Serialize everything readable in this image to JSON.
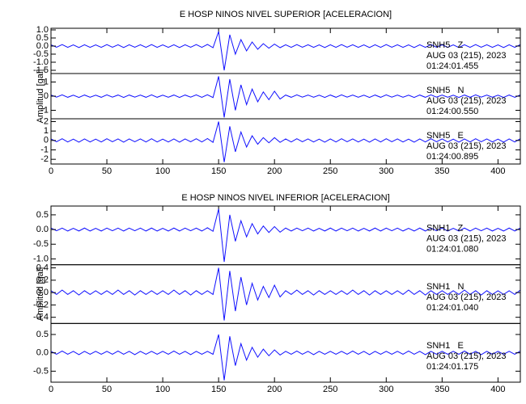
{
  "chart_data": [
    {
      "type": "line",
      "title": "E HOSP NINOS NIVEL SUPERIOR [ACELERACION]",
      "ylabel": "Amplitud [gal]",
      "xlim": [
        0,
        420
      ],
      "xticks": [
        0,
        50,
        100,
        150,
        200,
        250,
        300,
        350,
        400
      ],
      "x": [
        0,
        5,
        10,
        15,
        20,
        25,
        30,
        35,
        40,
        45,
        50,
        55,
        60,
        65,
        70,
        75,
        80,
        85,
        90,
        95,
        100,
        105,
        110,
        115,
        120,
        125,
        130,
        135,
        140,
        145,
        150,
        155,
        160,
        165,
        170,
        175,
        180,
        185,
        190,
        195,
        200,
        205,
        210,
        215,
        220,
        225,
        230,
        235,
        240,
        245,
        250,
        255,
        260,
        265,
        270,
        275,
        280,
        285,
        290,
        295,
        300,
        305,
        310,
        315,
        320,
        325,
        330,
        335,
        340,
        345,
        350,
        355,
        360,
        365,
        370,
        375,
        380,
        385,
        390,
        395,
        400,
        405,
        410,
        415,
        420
      ],
      "series": [
        {
          "name": "SNH5   Z",
          "annotation": [
            "AUG 03 (215), 2023",
            "01:24:01.455"
          ],
          "color": "#1010ff",
          "ylim": [
            -1.7,
            1.1
          ],
          "yticks": [
            {
              "value": 1,
              "label": "1.0"
            },
            0.5,
            {
              "value": 0,
              "label": "0.0"
            },
            -0.5,
            {
              "value": -1,
              "label": "-1.0"
            },
            -1.5
          ],
          "values": [
            0.08,
            -0.07,
            0.09,
            -0.08,
            0.07,
            -0.09,
            0.08,
            -0.08,
            0.07,
            -0.08,
            0.09,
            -0.07,
            0.08,
            -0.09,
            0.08,
            -0.07,
            0.08,
            -0.08,
            0.09,
            -0.08,
            0.07,
            -0.08,
            0.08,
            -0.09,
            0.08,
            -0.07,
            0.09,
            -0.08,
            0.1,
            -0.1,
            0.9,
            -1.5,
            0.7,
            -0.5,
            0.4,
            -0.3,
            0.25,
            -0.2,
            0.15,
            -0.13,
            0.12,
            -0.1,
            0.08,
            -0.08,
            0.09,
            -0.07,
            0.08,
            -0.08,
            0.07,
            -0.09,
            0.08,
            -0.08,
            0.09,
            -0.07,
            0.08,
            -0.08,
            0.07,
            -0.09,
            0.08,
            -0.08,
            0.09,
            -0.07,
            0.08,
            -0.08,
            0.07,
            -0.09,
            0.08,
            -0.08,
            0.09,
            -0.07,
            0.08,
            -0.08,
            0.07,
            -0.09,
            0.08,
            -0.08,
            0.09,
            -0.07,
            0.08,
            -0.08,
            0.07,
            -0.09,
            0.08,
            -0.08,
            0.09
          ]
        },
        {
          "name": "SNH5   N",
          "annotation": [
            "AUG 03 (215), 2023",
            "01:24:00.550"
          ],
          "color": "#1010ff",
          "ylim": [
            -1.6,
            1.6
          ],
          "yticks": [
            1,
            0,
            -1
          ],
          "values": [
            0.08,
            -0.07,
            0.09,
            -0.08,
            0.07,
            -0.09,
            0.08,
            -0.08,
            0.07,
            -0.08,
            0.09,
            -0.07,
            0.08,
            -0.09,
            0.08,
            -0.07,
            0.08,
            -0.08,
            0.09,
            -0.08,
            0.07,
            -0.08,
            0.08,
            -0.09,
            0.08,
            -0.07,
            0.09,
            -0.08,
            0.1,
            -0.1,
            1.4,
            -1.5,
            1.2,
            -1.0,
            0.8,
            -0.6,
            0.5,
            -0.4,
            0.3,
            -0.25,
            0.35,
            -0.2,
            0.08,
            -0.08,
            0.09,
            -0.07,
            0.08,
            -0.08,
            0.07,
            -0.09,
            0.08,
            -0.08,
            0.09,
            -0.07,
            0.08,
            -0.08,
            0.07,
            -0.09,
            0.08,
            -0.08,
            0.09,
            -0.07,
            0.08,
            -0.08,
            0.07,
            -0.09,
            0.08,
            -0.08,
            0.09,
            -0.07,
            0.08,
            -0.08,
            0.07,
            -0.09,
            0.08,
            -0.08,
            0.09,
            -0.07,
            0.08,
            -0.08,
            0.07,
            -0.09,
            0.08,
            -0.08,
            0.09
          ]
        },
        {
          "name": "SNH5   E",
          "annotation": [
            "AUG 03 (215), 2023",
            "01:24:00.895"
          ],
          "color": "#1010ff",
          "ylim": [
            -2.5,
            2.3
          ],
          "yticks": [
            2,
            1,
            0,
            -1,
            -2
          ],
          "values": [
            0.16,
            -0.14,
            0.18,
            -0.16,
            0.14,
            -0.18,
            0.16,
            -0.16,
            0.14,
            -0.16,
            0.18,
            -0.14,
            0.16,
            -0.18,
            0.16,
            -0.14,
            0.16,
            -0.16,
            0.18,
            -0.16,
            0.14,
            -0.16,
            0.16,
            -0.18,
            0.16,
            -0.14,
            0.18,
            -0.16,
            0.2,
            -0.2,
            2.0,
            -2.3,
            1.5,
            -1.2,
            0.9,
            -0.7,
            0.5,
            -0.4,
            0.3,
            -0.25,
            0.3,
            -0.2,
            0.16,
            -0.16,
            0.18,
            -0.14,
            0.16,
            -0.16,
            0.14,
            -0.18,
            0.16,
            -0.16,
            0.18,
            -0.14,
            0.16,
            -0.16,
            0.14,
            -0.18,
            0.16,
            -0.16,
            0.18,
            -0.14,
            0.16,
            -0.16,
            0.14,
            -0.18,
            0.16,
            -0.16,
            0.18,
            -0.14,
            0.16,
            -0.16,
            0.14,
            -0.18,
            0.16,
            -0.16,
            0.18,
            -0.14,
            0.16,
            -0.16,
            0.14,
            -0.18,
            0.16,
            -0.16,
            0.18
          ]
        }
      ]
    },
    {
      "type": "line",
      "title": "E HOSP NINOS NIVEL INFERIOR [ACELERACION]",
      "ylabel": "Amplitud [gal]",
      "xlim": [
        0,
        420
      ],
      "xticks": [
        0,
        50,
        100,
        150,
        200,
        250,
        300,
        350,
        400
      ],
      "x": [
        0,
        5,
        10,
        15,
        20,
        25,
        30,
        35,
        40,
        45,
        50,
        55,
        60,
        65,
        70,
        75,
        80,
        85,
        90,
        95,
        100,
        105,
        110,
        115,
        120,
        125,
        130,
        135,
        140,
        145,
        150,
        155,
        160,
        165,
        170,
        175,
        180,
        185,
        190,
        195,
        200,
        205,
        210,
        215,
        220,
        225,
        230,
        235,
        240,
        245,
        250,
        255,
        260,
        265,
        270,
        275,
        280,
        285,
        290,
        295,
        300,
        305,
        310,
        315,
        320,
        325,
        330,
        335,
        340,
        345,
        350,
        355,
        360,
        365,
        370,
        375,
        380,
        385,
        390,
        395,
        400,
        405,
        410,
        415,
        420
      ],
      "series": [
        {
          "name": "SNH1   Z",
          "annotation": [
            "AUG 03 (215), 2023",
            "01:24:01.080"
          ],
          "color": "#1010ff",
          "ylim": [
            -1.2,
            0.8
          ],
          "yticks": [
            0.5,
            {
              "value": 0,
              "label": "0.0"
            },
            -0.5,
            {
              "value": -1,
              "label": "-1.0"
            }
          ],
          "values": [
            0.05,
            -0.04,
            0.05,
            -0.05,
            0.04,
            -0.05,
            0.05,
            -0.05,
            0.04,
            -0.05,
            0.05,
            -0.04,
            0.05,
            -0.05,
            0.05,
            -0.04,
            0.05,
            -0.05,
            0.05,
            -0.05,
            0.04,
            -0.05,
            0.05,
            -0.05,
            0.05,
            -0.04,
            0.05,
            -0.05,
            0.06,
            -0.06,
            0.7,
            -1.1,
            0.5,
            -0.4,
            0.3,
            -0.25,
            0.2,
            -0.15,
            0.12,
            -0.1,
            0.1,
            -0.09,
            0.05,
            -0.05,
            0.05,
            -0.04,
            0.05,
            -0.05,
            0.04,
            -0.05,
            0.05,
            -0.05,
            0.05,
            -0.04,
            0.05,
            -0.05,
            0.04,
            -0.05,
            0.05,
            -0.05,
            0.05,
            -0.04,
            0.05,
            -0.05,
            0.04,
            -0.05,
            0.05,
            -0.05,
            0.05,
            -0.04,
            0.05,
            -0.05,
            0.04,
            -0.05,
            0.05,
            -0.05,
            0.05,
            -0.04,
            0.05,
            -0.05,
            0.04,
            -0.05,
            0.05,
            -0.05,
            0.05
          ]
        },
        {
          "name": "SNH1   N",
          "annotation": [
            "AUG 03 (215), 2023",
            "01:24:01.040"
          ],
          "color": "#1010ff",
          "ylim": [
            -0.5,
            0.45
          ],
          "yticks": [
            0.4,
            0.2,
            {
              "value": 0,
              "label": "0.0"
            },
            -0.2,
            -0.4
          ],
          "values": [
            0.03,
            -0.03,
            0.04,
            -0.03,
            0.03,
            -0.04,
            0.03,
            -0.03,
            0.03,
            -0.03,
            0.03,
            -0.03,
            0.04,
            -0.03,
            0.03,
            -0.04,
            0.03,
            -0.03,
            0.03,
            -0.03,
            0.03,
            -0.03,
            0.04,
            -0.03,
            0.03,
            -0.04,
            0.03,
            -0.03,
            0.03,
            -0.03,
            0.4,
            -0.45,
            0.35,
            -0.3,
            0.25,
            -0.2,
            0.15,
            -0.12,
            0.1,
            -0.08,
            0.12,
            -0.07,
            0.03,
            -0.03,
            0.04,
            -0.03,
            0.03,
            -0.04,
            0.03,
            -0.03,
            0.03,
            -0.03,
            0.03,
            -0.03,
            0.04,
            -0.03,
            0.03,
            -0.04,
            0.03,
            -0.03,
            0.03,
            -0.03,
            0.03,
            -0.03,
            0.04,
            -0.03,
            0.03,
            -0.04,
            0.03,
            -0.03,
            0.03,
            -0.03,
            0.03,
            -0.03,
            0.04,
            -0.03,
            0.03,
            -0.04,
            0.03,
            -0.03,
            0.03,
            -0.03,
            0.03,
            -0.03,
            0.04
          ]
        },
        {
          "name": "SNH1   E",
          "annotation": [
            "AUG 03 (215), 2023",
            "01:24:01.175"
          ],
          "color": "#1010ff",
          "ylim": [
            -0.8,
            0.8
          ],
          "yticks": [
            0.5,
            {
              "value": 0,
              "label": "0.0"
            },
            -0.5
          ],
          "values": [
            0.04,
            -0.04,
            0.05,
            -0.04,
            0.04,
            -0.05,
            0.04,
            -0.04,
            0.04,
            -0.04,
            0.04,
            -0.04,
            0.05,
            -0.04,
            0.04,
            -0.05,
            0.04,
            -0.04,
            0.04,
            -0.04,
            0.04,
            -0.04,
            0.05,
            -0.04,
            0.04,
            -0.05,
            0.04,
            -0.04,
            0.04,
            -0.04,
            0.5,
            -0.75,
            0.45,
            -0.35,
            0.25,
            -0.2,
            0.15,
            -0.12,
            0.1,
            -0.08,
            0.08,
            -0.06,
            0.04,
            -0.04,
            0.05,
            -0.04,
            0.04,
            -0.05,
            0.04,
            -0.04,
            0.04,
            -0.04,
            0.04,
            -0.04,
            0.05,
            -0.04,
            0.04,
            -0.05,
            0.04,
            -0.04,
            0.04,
            -0.04,
            0.04,
            -0.04,
            0.05,
            -0.04,
            0.04,
            -0.05,
            0.04,
            -0.04,
            0.04,
            -0.04,
            0.04,
            -0.04,
            0.05,
            -0.04,
            0.04,
            -0.05,
            0.04,
            -0.04,
            0.04,
            -0.04,
            0.04,
            -0.04,
            0.05
          ]
        }
      ]
    }
  ]
}
